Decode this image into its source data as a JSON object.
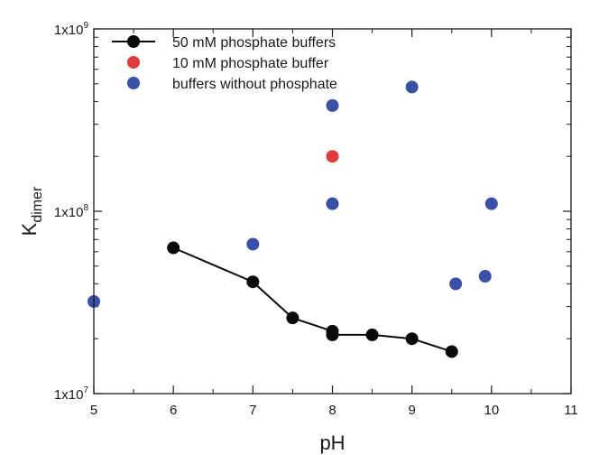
{
  "chart_data": {
    "type": "scatter",
    "title": "",
    "xlabel": "pH",
    "ylabel_main": "K",
    "ylabel_sub": "dimer",
    "xlim": [
      5,
      11
    ],
    "ylim": [
      10000000,
      1000000000
    ],
    "y_scale": "log",
    "grid": false,
    "legend_position": "top-left",
    "x_ticks": [
      "5",
      "6",
      "7",
      "8",
      "9",
      "10",
      "11"
    ],
    "y_ticks": [
      {
        "mantissa": "1x10",
        "exponent": "7",
        "value": 10000000
      },
      {
        "mantissa": "1x10",
        "exponent": "8",
        "value": 100000000
      },
      {
        "mantissa": "1x10",
        "exponent": "9",
        "value": 1000000000
      }
    ],
    "series": [
      {
        "name": "50 mM phosphate buffers",
        "color": "#0a0a0a",
        "connected": true,
        "points": [
          {
            "x": 6.0,
            "y": 63000000
          },
          {
            "x": 7.0,
            "y": 41000000
          },
          {
            "x": 7.5,
            "y": 26000000
          },
          {
            "x": 8.0,
            "y": 22000000
          },
          {
            "x": 8.0,
            "y": 21000000
          },
          {
            "x": 8.5,
            "y": 21000000
          },
          {
            "x": 9.0,
            "y": 20000000
          },
          {
            "x": 9.5,
            "y": 17000000
          }
        ]
      },
      {
        "name": "10 mM phosphate buffer",
        "color": "#e03c3c",
        "connected": false,
        "points": [
          {
            "x": 8.0,
            "y": 200000000
          }
        ]
      },
      {
        "name": "buffers without phosphate",
        "color": "#3a4fa8",
        "connected": false,
        "points": [
          {
            "x": 5.0,
            "y": 32000000
          },
          {
            "x": 7.0,
            "y": 66000000
          },
          {
            "x": 8.0,
            "y": 380000000
          },
          {
            "x": 8.0,
            "y": 110000000
          },
          {
            "x": 9.0,
            "y": 480000000
          },
          {
            "x": 9.55,
            "y": 40000000
          },
          {
            "x": 9.92,
            "y": 44000000
          },
          {
            "x": 10.0,
            "y": 110000000
          }
        ]
      }
    ]
  }
}
